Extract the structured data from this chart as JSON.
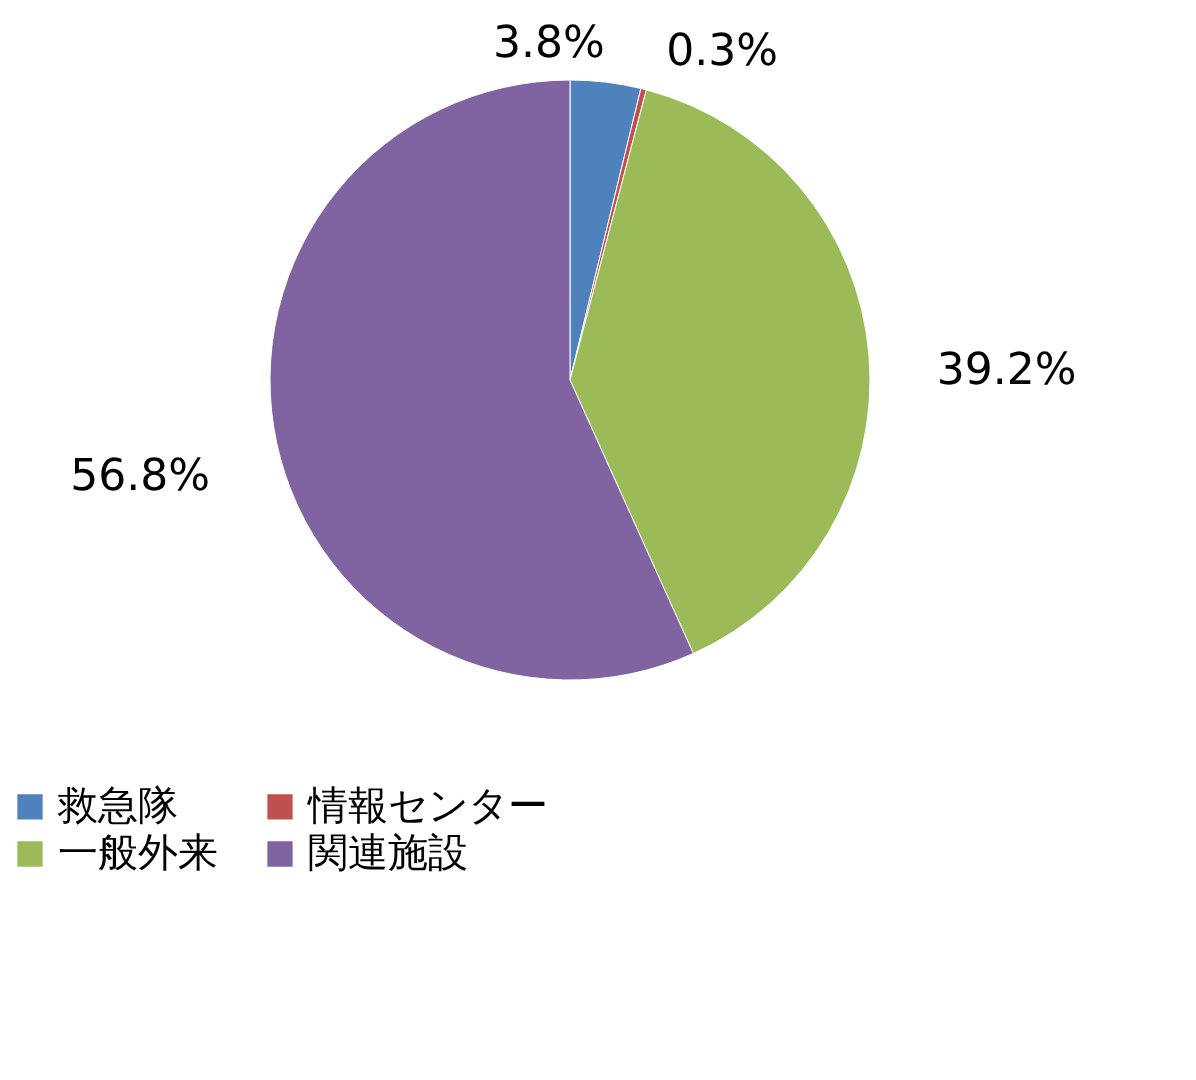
{
  "chart_data": {
    "type": "pie",
    "categories": [
      "救急隊",
      "情報センター",
      "一般外来",
      "関連施設"
    ],
    "values": [
      3.8,
      0.3,
      39.2,
      56.8
    ],
    "value_labels": [
      "3.8%",
      "0.3%",
      "39.2%",
      "56.8%"
    ],
    "colors": [
      "#4f81bd",
      "#c0504d",
      "#9bbb59",
      "#8064a2"
    ],
    "legend": "bottom"
  }
}
